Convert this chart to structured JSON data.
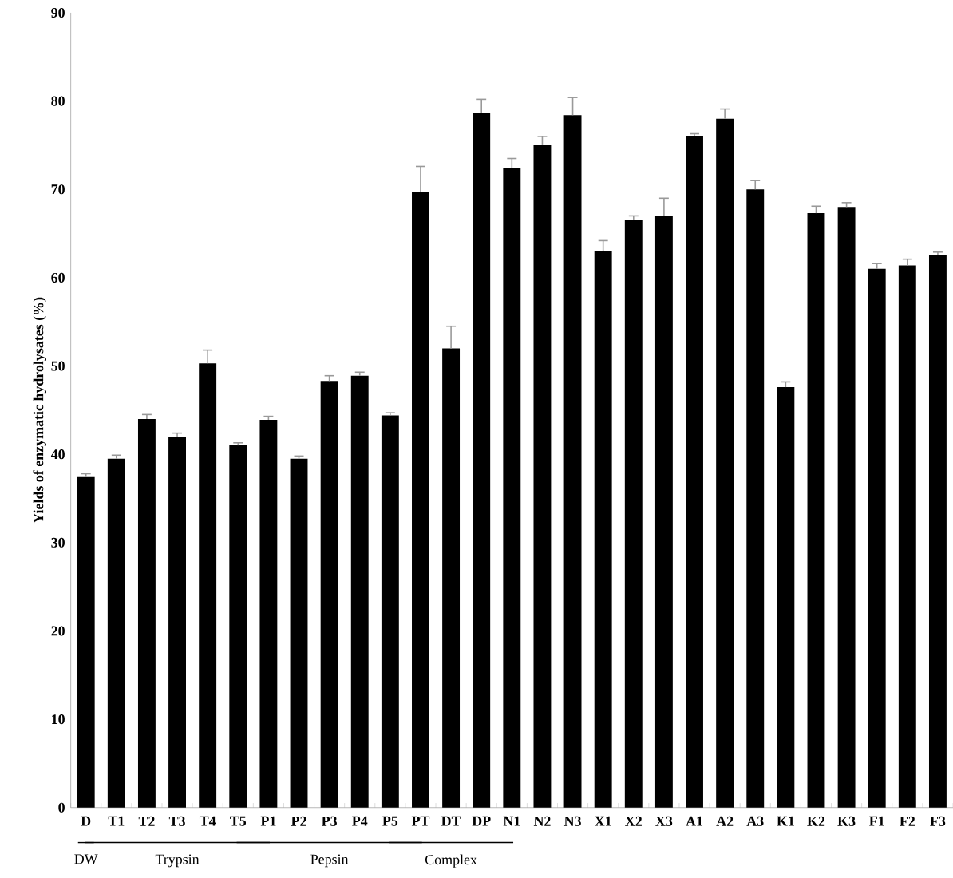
{
  "chart_data": {
    "type": "bar",
    "ylabel": "Yields of enzymatic hydrolysates (%)",
    "categories": [
      "D",
      "T1",
      "T2",
      "T3",
      "T4",
      "T5",
      "P1",
      "P2",
      "P3",
      "P4",
      "P5",
      "PT",
      "DT",
      "DP",
      "N1",
      "N2",
      "N3",
      "X1",
      "X2",
      "X3",
      "A1",
      "A2",
      "A3",
      "K1",
      "K2",
      "K3",
      "F1",
      "F2",
      "F3"
    ],
    "values": [
      37.5,
      39.5,
      44,
      42,
      50.3,
      41,
      43.9,
      39.5,
      48.3,
      48.9,
      44.4,
      69.7,
      52,
      78.7,
      72.4,
      75,
      78.4,
      63,
      66.5,
      67,
      76,
      78,
      70,
      47.6,
      67.3,
      68,
      61,
      61.4,
      62.6
    ],
    "errors": [
      [
        37.5,
        37.8
      ],
      [
        39.5,
        39.9
      ],
      [
        44,
        44.5
      ],
      [
        42,
        42.4
      ],
      [
        50.3,
        51.8
      ],
      [
        41,
        41.3
      ],
      [
        43.9,
        44.3
      ],
      [
        39.5,
        39.8
      ],
      [
        48.3,
        48.9
      ],
      [
        48.9,
        49.3
      ],
      [
        44.4,
        44.7
      ],
      [
        69.7,
        72.6
      ],
      [
        52,
        54.5
      ],
      [
        78.7,
        80.2
      ],
      [
        72.4,
        73.5
      ],
      [
        75,
        76
      ],
      [
        78.4,
        80.4
      ],
      [
        63,
        64.2
      ],
      [
        66.5,
        67
      ],
      [
        67,
        69
      ],
      [
        76,
        76.3
      ],
      [
        78,
        79.1
      ],
      [
        70,
        71
      ],
      [
        47.6,
        48.2
      ],
      [
        67.3,
        68.1
      ],
      [
        68,
        68.5
      ],
      [
        61,
        61.6
      ],
      [
        61.4,
        62.1
      ],
      [
        62.6,
        62.9
      ]
    ],
    "color": "#000000",
    "ylim": [
      0,
      90
    ],
    "yticks": [
      0,
      10,
      20,
      30,
      40,
      50,
      60,
      70,
      80,
      90
    ],
    "annotations": [
      "DW",
      "Trypsin",
      "Pepsin",
      "Complex"
    ]
  }
}
